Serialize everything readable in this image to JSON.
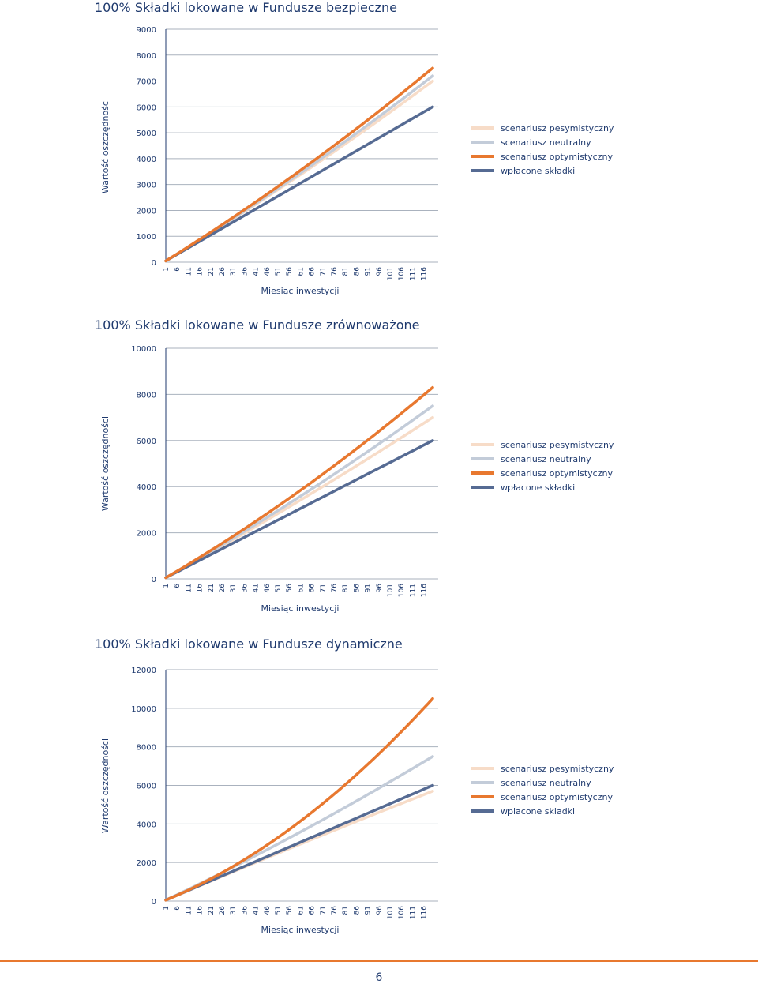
{
  "colors": {
    "text": "#1f3a6e",
    "grid": "#aab2be",
    "pesymistyczny": "#f7dcc8",
    "neutralny": "#c3ccd9",
    "optymistyczny": "#e8782f",
    "wplacone": "#566b93",
    "footer_rule": "#e8782f"
  },
  "page_number": "6",
  "chart_data": [
    {
      "type": "line",
      "title": "100% Składki lokowane w Fundusze bezpieczne",
      "xlabel": "Miesiąc inwestycji",
      "ylabel": "Wartość oszczędności",
      "ylim": [
        0,
        9000
      ],
      "yticks": [
        0,
        1000,
        2000,
        3000,
        4000,
        5000,
        6000,
        7000,
        8000,
        9000
      ],
      "x_ticks": [
        1,
        6,
        11,
        16,
        21,
        26,
        31,
        36,
        41,
        46,
        51,
        56,
        61,
        66,
        71,
        76,
        81,
        86,
        91,
        96,
        101,
        106,
        111,
        116
      ],
      "grid": true,
      "legend_position": "right",
      "series": [
        {
          "name": "scenariusz pesymistyczny",
          "color_key": "pesymistyczny",
          "x": [
            1,
            120
          ],
          "y": [
            50,
            7000
          ],
          "curve": 0.1
        },
        {
          "name": "scenariusz neutralny",
          "color_key": "neutralny",
          "x": [
            1,
            120
          ],
          "y": [
            50,
            7200
          ],
          "curve": 0.12
        },
        {
          "name": "scenariusz optymistyczny",
          "color_key": "optymistyczny",
          "x": [
            1,
            120
          ],
          "y": [
            50,
            7500
          ],
          "curve": 0.14
        },
        {
          "name": "wpłacone składki",
          "color_key": "wplacone",
          "x": [
            1,
            120
          ],
          "y": [
            50,
            6000
          ],
          "curve": 0
        }
      ],
      "legend_labels": [
        "scenariusz pesymistyczny",
        "scenariusz neutralny",
        "scenariusz optymistyczny",
        "wpłacone składki"
      ]
    },
    {
      "type": "line",
      "title": "100% Składki lokowane w Fundusze zrównoważone",
      "xlabel": "Miesiąc inwestycji",
      "ylabel": "Wartość oszczędności",
      "ylim": [
        0,
        10000
      ],
      "yticks": [
        0,
        2000,
        4000,
        6000,
        8000,
        10000
      ],
      "x_ticks": [
        1,
        6,
        11,
        16,
        21,
        26,
        31,
        36,
        41,
        46,
        51,
        56,
        61,
        66,
        71,
        76,
        81,
        86,
        91,
        96,
        101,
        106,
        111,
        116
      ],
      "grid": true,
      "legend_position": "right",
      "series": [
        {
          "name": "scenariusz pesymistyczny",
          "color_key": "pesymistyczny",
          "x": [
            1,
            120
          ],
          "y": [
            50,
            7000
          ],
          "curve": 0.08
        },
        {
          "name": "scenariusz neutralny",
          "color_key": "neutralny",
          "x": [
            1,
            120
          ],
          "y": [
            50,
            7500
          ],
          "curve": 0.12
        },
        {
          "name": "scenariusz optymistyczny",
          "color_key": "optymistyczny",
          "x": [
            1,
            120
          ],
          "y": [
            50,
            8300
          ],
          "curve": 0.18
        },
        {
          "name": "wpłacone składki",
          "color_key": "wplacone",
          "x": [
            1,
            120
          ],
          "y": [
            50,
            6000
          ],
          "curve": 0
        }
      ],
      "legend_labels": [
        "scenariusz pesymistyczny",
        "scenariusz neutralny",
        "scenariusz optymistyczny",
        "wpłacone składki"
      ]
    },
    {
      "type": "line",
      "title": "100% Składki lokowane w Fundusze dynamiczne",
      "xlabel": "Miesiąc inwestycji",
      "ylabel": "Wartość oszczędności",
      "ylim": [
        0,
        12000
      ],
      "yticks": [
        0,
        2000,
        4000,
        6000,
        8000,
        10000,
        12000
      ],
      "x_ticks": [
        1,
        6,
        11,
        16,
        21,
        26,
        31,
        36,
        41,
        46,
        51,
        56,
        61,
        66,
        71,
        76,
        81,
        86,
        91,
        96,
        101,
        106,
        111,
        116
      ],
      "grid": true,
      "legend_position": "right",
      "series": [
        {
          "name": "scenariusz pesymistyczny",
          "color_key": "pesymistyczny",
          "x": [
            1,
            120
          ],
          "y": [
            50,
            5700
          ],
          "curve": -0.04
        },
        {
          "name": "scenariusz neutralny",
          "color_key": "neutralny",
          "x": [
            1,
            120
          ],
          "y": [
            50,
            7500
          ],
          "curve": 0.12
        },
        {
          "name": "scenariusz optymistyczny",
          "color_key": "optymistyczny",
          "x": [
            1,
            120
          ],
          "y": [
            50,
            10500
          ],
          "curve": 0.45
        },
        {
          "name": "wpłacone składki",
          "color_key": "wplacone",
          "x": [
            1,
            120
          ],
          "y": [
            50,
            6000
          ],
          "curve": 0
        }
      ],
      "legend_labels": [
        "scenariusz pesymistyczny",
        "scenariusz neutralny",
        "scenariusz optymistyczny",
        "wplacone skladki"
      ]
    }
  ]
}
